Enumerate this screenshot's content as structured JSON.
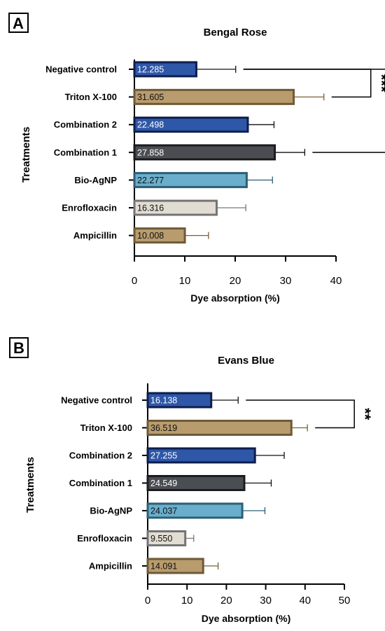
{
  "chart_data": [
    {
      "panel_label": "A",
      "type": "bar",
      "orientation": "horizontal",
      "title": "Bengal Rose",
      "xlabel": "Dye absorption (%)",
      "ylabel": "Treatments",
      "xlim": [
        0,
        40
      ],
      "xticks": [
        0,
        10,
        20,
        30,
        40
      ],
      "categories": [
        "Negative control",
        "Triton X-100",
        "Combination 2",
        "Combination 1",
        "Bio-AgNP",
        "Enrofloxacin",
        "Ampicillin"
      ],
      "values": [
        12.285,
        31.605,
        22.498,
        27.858,
        22.277,
        16.316,
        10.008
      ],
      "value_labels": [
        "12.285",
        "31.605",
        "22.498",
        "27.858",
        "22.277",
        "16.316",
        "10.008"
      ],
      "error_upper": [
        20.1,
        37.6,
        27.7,
        33.8,
        27.4,
        22.1,
        14.7
      ],
      "grid": false,
      "significance": [
        {
          "from": "Negative control",
          "to": "Triton X-100",
          "label": "***"
        },
        {
          "from": "Negative control",
          "to": "Combination 1",
          "label": "**"
        }
      ]
    },
    {
      "panel_label": "B",
      "type": "bar",
      "orientation": "horizontal",
      "title": "Evans Blue",
      "xlabel": "Dye absorption (%)",
      "ylabel": "Treatments",
      "xlim": [
        0,
        50
      ],
      "xticks": [
        0,
        10,
        20,
        30,
        40,
        50
      ],
      "categories": [
        "Negative control",
        "Triton X-100",
        "Combination 2",
        "Combination 1",
        "Bio-AgNP",
        "Enrofloxacin",
        "Ampicillin"
      ],
      "values": [
        16.138,
        36.519,
        27.255,
        24.549,
        24.037,
        9.55,
        14.091
      ],
      "value_labels": [
        "16.138",
        "36.519",
        "27.255",
        "24.549",
        "24.037",
        "9.550",
        "14.091"
      ],
      "error_upper": [
        23.0,
        40.6,
        34.7,
        31.4,
        29.8,
        11.7,
        17.9
      ],
      "grid": false,
      "significance": [
        {
          "from": "Negative control",
          "to": "Triton X-100",
          "label": "**"
        }
      ]
    }
  ],
  "colors": {
    "fills": [
      "#2f57a8",
      "#b89c6e",
      "#2f57a8",
      "#4a4d52",
      "#6aaecb",
      "#e2ddd3",
      "#b89c6e"
    ],
    "strokes": [
      "#0d1e4c",
      "#6e5a36",
      "#0d1e4c",
      "#1b1c1e",
      "#2b5f75",
      "#747474",
      "#6e5a36"
    ],
    "label_colors": [
      "#ffffff",
      "#111111",
      "#ffffff",
      "#ffffff",
      "#111111",
      "#111111",
      "#111111"
    ],
    "error": [
      "#111111",
      "#7a5f38",
      "#111111",
      "#111111",
      "#2b5f75",
      "#777777",
      "#7a5f38"
    ]
  }
}
